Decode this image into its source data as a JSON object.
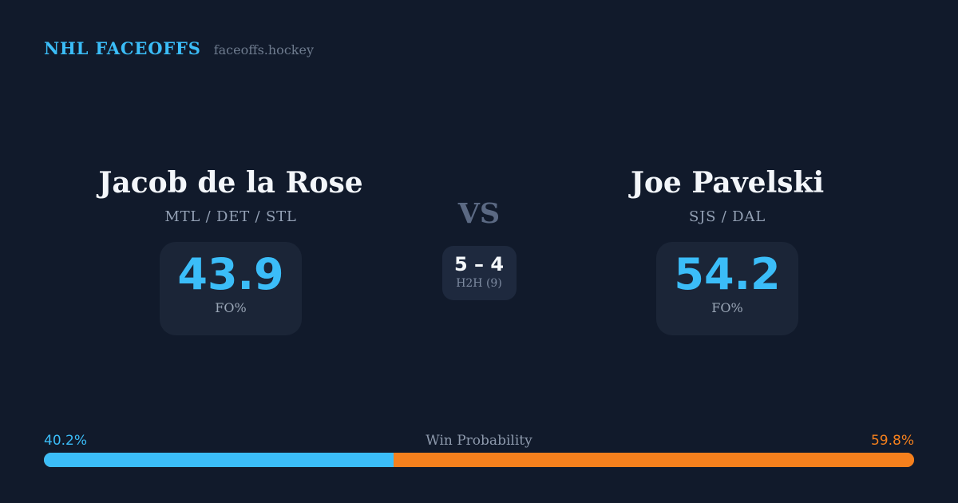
{
  "header": {
    "brand": "NHL FACEOFFS",
    "site": "faceoffs.hockey"
  },
  "players": {
    "left": {
      "name": "Jacob de la Rose",
      "teams": "MTL / DET / STL",
      "fo_value": "43.9",
      "fo_label": "FO%"
    },
    "right": {
      "name": "Joe Pavelski",
      "teams": "SJS / DAL",
      "fo_value": "54.2",
      "fo_label": "FO%"
    }
  },
  "matchup": {
    "vs_label": "VS",
    "h2h_score": "5 – 4",
    "h2h_label": "H2H (9)"
  },
  "win_probability": {
    "title": "Win Probability",
    "left_label": "40.2%",
    "right_label": "59.8%",
    "left_value": 40.2,
    "right_value": 59.8
  },
  "colors": {
    "background": "#111a2b",
    "card": "#1b2537",
    "h2h_card": "#1e293e",
    "accent_blue": "#3bbdf8",
    "accent_orange": "#f5801d",
    "name_text": "#f3f6fa",
    "muted_text": "#94a1b5",
    "vs_text": "#5b6983"
  }
}
